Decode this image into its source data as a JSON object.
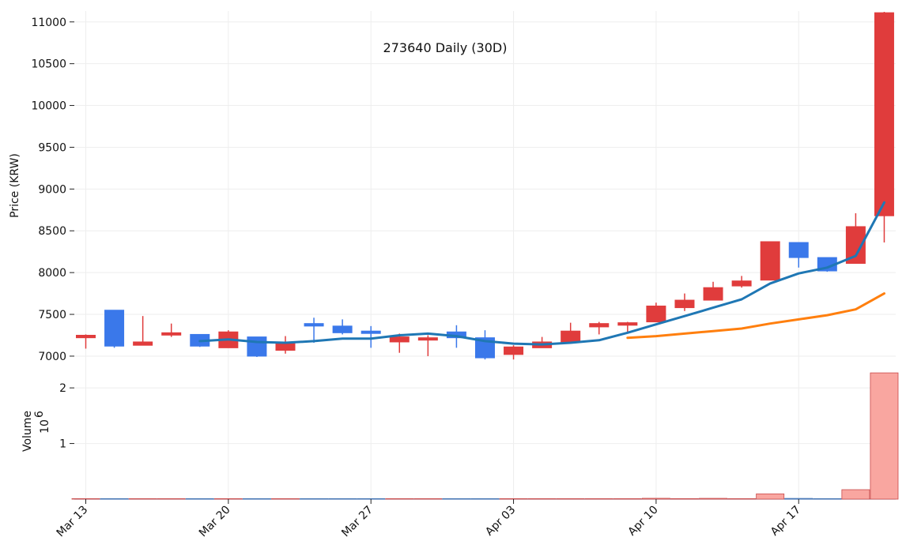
{
  "chart_data": {
    "type": "candlestick",
    "title": "273640 Daily (30D)",
    "price_ylabel": "Price (KRW)",
    "volume_ylabel": "Volume",
    "volume_multiplier": "10",
    "volume_exponent": "6",
    "price_ylim": [
      6990,
      11130
    ],
    "price_yticks": [
      7000,
      7500,
      8000,
      8500,
      9000,
      9500,
      10000,
      10500,
      11000
    ],
    "volume_ylim": [
      0,
      2.3
    ],
    "volume_yticks": [
      1,
      2
    ],
    "x_ticks": [
      {
        "label": "Mar 13",
        "idx": 0
      },
      {
        "label": "Mar 20",
        "idx": 5
      },
      {
        "label": "Mar 27",
        "idx": 10
      },
      {
        "label": "Apr 03",
        "idx": 15
      },
      {
        "label": "Apr 10",
        "idx": 20
      },
      {
        "label": "Apr 17",
        "idx": 25
      }
    ],
    "candles": [
      {
        "o": 7220,
        "h": 7260,
        "l": 7090,
        "c": 7250
      },
      {
        "o": 7550,
        "h": 7550,
        "l": 7100,
        "c": 7120
      },
      {
        "o": 7130,
        "h": 7480,
        "l": 7130,
        "c": 7170
      },
      {
        "o": 7260,
        "h": 7390,
        "l": 7230,
        "c": 7280
      },
      {
        "o": 7260,
        "h": 7260,
        "l": 7110,
        "c": 7120
      },
      {
        "o": 7100,
        "h": 7310,
        "l": 7100,
        "c": 7290
      },
      {
        "o": 7230,
        "h": 7230,
        "l": 6990,
        "c": 7000
      },
      {
        "o": 7070,
        "h": 7240,
        "l": 7030,
        "c": 7150
      },
      {
        "o": 7390,
        "h": 7460,
        "l": 7160,
        "c": 7360
      },
      {
        "o": 7360,
        "h": 7440,
        "l": 7260,
        "c": 7280
      },
      {
        "o": 7300,
        "h": 7360,
        "l": 7100,
        "c": 7280
      },
      {
        "o": 7170,
        "h": 7270,
        "l": 7040,
        "c": 7230
      },
      {
        "o": 7220,
        "h": 7250,
        "l": 7000,
        "c": 7220
      },
      {
        "o": 7290,
        "h": 7370,
        "l": 7100,
        "c": 7220
      },
      {
        "o": 7220,
        "h": 7310,
        "l": 6960,
        "c": 6980
      },
      {
        "o": 7020,
        "h": 7130,
        "l": 6960,
        "c": 7110
      },
      {
        "o": 7100,
        "h": 7230,
        "l": 7100,
        "c": 7170
      },
      {
        "o": 7170,
        "h": 7400,
        "l": 7170,
        "c": 7300
      },
      {
        "o": 7350,
        "h": 7410,
        "l": 7260,
        "c": 7390
      },
      {
        "o": 7370,
        "h": 7410,
        "l": 7290,
        "c": 7400
      },
      {
        "o": 7410,
        "h": 7640,
        "l": 7410,
        "c": 7600
      },
      {
        "o": 7580,
        "h": 7750,
        "l": 7540,
        "c": 7670
      },
      {
        "o": 7670,
        "h": 7890,
        "l": 7670,
        "c": 7820
      },
      {
        "o": 7840,
        "h": 7960,
        "l": 7820,
        "c": 7900
      },
      {
        "o": 7910,
        "h": 8370,
        "l": 7910,
        "c": 8370
      },
      {
        "o": 8360,
        "h": 8360,
        "l": 8060,
        "c": 8180
      },
      {
        "o": 8180,
        "h": 8180,
        "l": 8010,
        "c": 8020
      },
      {
        "o": 8110,
        "h": 8710,
        "l": 8110,
        "c": 8550
      },
      {
        "o": 8680,
        "h": 11120,
        "l": 8360,
        "c": 11110
      }
    ],
    "volume": [
      0.001,
      0.001,
      0.005,
      0.001,
      0.001,
      0.001,
      0.001,
      0.001,
      0.001,
      0.001,
      0.001,
      0.001,
      0.001,
      0.004,
      0.004,
      0.001,
      0.001,
      0.006,
      0.006,
      0.002,
      0.015,
      0.009,
      0.014,
      0.007,
      0.095,
      0.013,
      0.008,
      0.17,
      2.27
    ],
    "ma_short": [
      null,
      null,
      null,
      null,
      7180,
      7200,
      7170,
      7160,
      7180,
      7210,
      7210,
      7250,
      7270,
      7240,
      7180,
      7150,
      7140,
      7160,
      7190,
      7280,
      7380,
      7480,
      7580,
      7680,
      7870,
      7990,
      8060,
      8200,
      8840
    ],
    "ma_long": [
      null,
      null,
      null,
      null,
      null,
      null,
      null,
      null,
      null,
      null,
      null,
      null,
      null,
      null,
      null,
      null,
      null,
      null,
      null,
      7220,
      7240,
      7270,
      7300,
      7330,
      7390,
      7440,
      7490,
      7560,
      7750
    ],
    "up_color": "#e03c3c",
    "down_color": "#3a78ea",
    "ma_short_color": "#1f77b4",
    "ma_long_color": "#ff7f0e",
    "volume_up_color": "#f9a6a0",
    "volume_down_color": "#a3c4ff"
  }
}
